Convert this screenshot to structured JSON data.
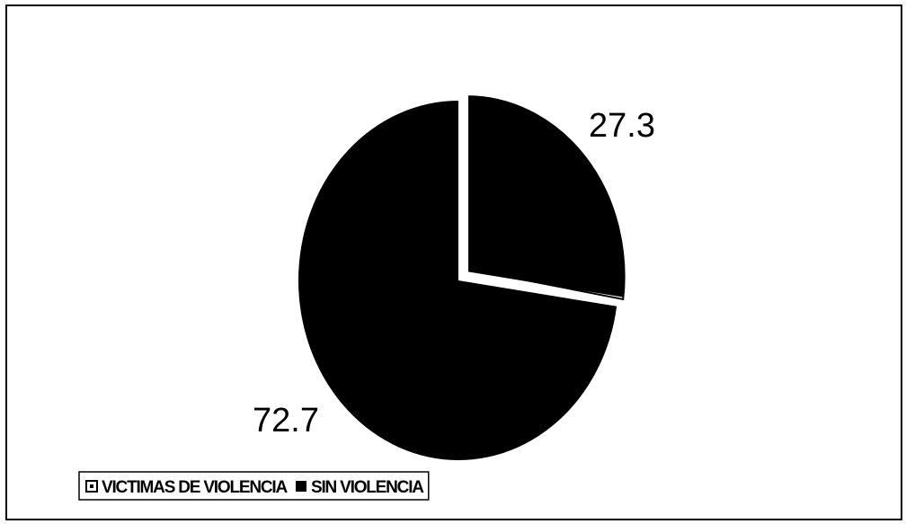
{
  "chart_data": {
    "type": "pie",
    "categories": [
      "VICTIMAS DE VIOLENCIA",
      "SIN VIOLENCIA"
    ],
    "values": [
      27.3,
      72.7
    ],
    "colors": [
      "#000000",
      "#000000"
    ],
    "exploded": [
      true,
      false
    ],
    "legend": "bottom-left"
  }
}
